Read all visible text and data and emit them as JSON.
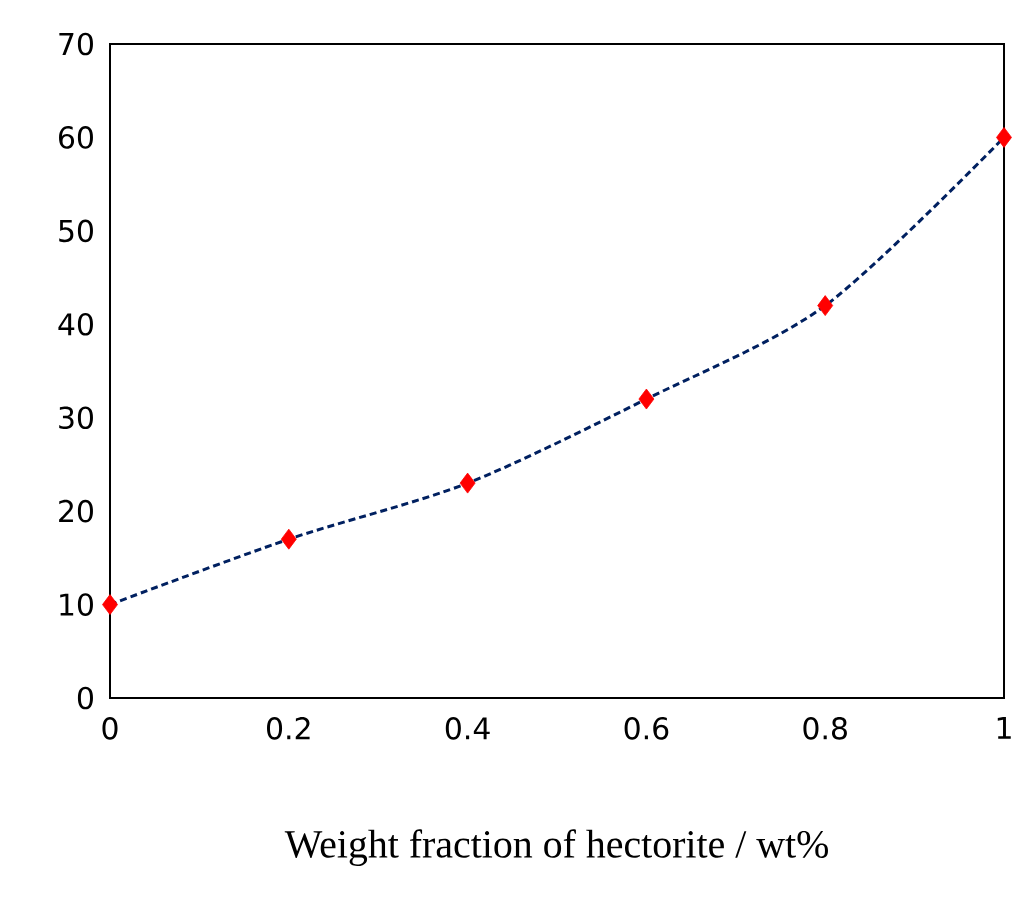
{
  "chart_data": {
    "type": "line",
    "xlabel": "Weight fraction of hectorite / wt%",
    "x": [
      0,
      0.2,
      0.4,
      0.6,
      0.8,
      1
    ],
    "series": [
      {
        "color": "#002060",
        "values": [
          10,
          17,
          23,
          32,
          42,
          60
        ],
        "line_style": "dashed",
        "marker": "none"
      },
      {
        "type": "scatter",
        "color": "#ff0000",
        "values": [
          10,
          17,
          23,
          32,
          42,
          60
        ],
        "marker": "diamond"
      }
    ],
    "xlim": [
      0,
      1
    ],
    "xticks": [
      0,
      0.2,
      0.4,
      0.6,
      0.8,
      1
    ],
    "ylim": [
      0,
      70
    ],
    "yticks": [
      0,
      10,
      20,
      30,
      40,
      50,
      60,
      70
    ]
  }
}
